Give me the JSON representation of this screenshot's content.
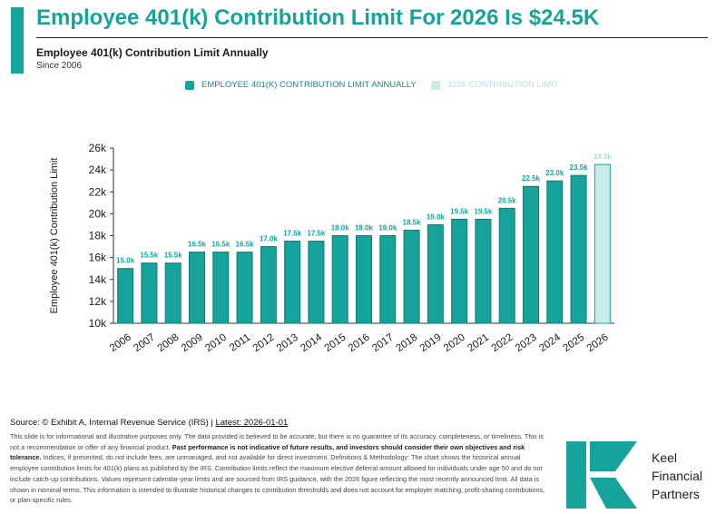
{
  "header": {
    "title": "Employee 401(k) Contribution Limit For 2026 Is $24.5K",
    "subtitle": "Employee 401(k) Contribution Limit Annually",
    "since": "Since 2006"
  },
  "legend": {
    "items": [
      {
        "label": "EMPLOYEE 401(K) CONTRIBUTION LIMIT ANNUALLY",
        "color": "#16a39c",
        "text_color": "#1a8a84"
      },
      {
        "label": "2026 CONTRIBUTION LIMIT",
        "color": "#c8ecea",
        "text_color": "#b6e3e0"
      }
    ]
  },
  "chart_data": {
    "type": "bar",
    "ylabel": "Employee 401(k) Contribution Limit",
    "ylim": [
      10,
      26
    ],
    "y_ticks": [
      10,
      12,
      14,
      16,
      18,
      20,
      22,
      24,
      26
    ],
    "y_tick_labels": [
      "10k",
      "12k",
      "14k",
      "16k",
      "18k",
      "20k",
      "22k",
      "24k",
      "26k"
    ],
    "categories": [
      "2006",
      "2007",
      "2008",
      "2009",
      "2010",
      "2011",
      "2012",
      "2013",
      "2014",
      "2015",
      "2016",
      "2017",
      "2018",
      "2019",
      "2020",
      "2021",
      "2022",
      "2023",
      "2024",
      "2025",
      "2026"
    ],
    "values": [
      15.0,
      15.5,
      15.5,
      16.5,
      16.5,
      16.5,
      17.0,
      17.5,
      17.5,
      18.0,
      18.0,
      18.0,
      18.5,
      19.0,
      19.5,
      19.5,
      20.5,
      22.5,
      23.0,
      23.5,
      24.5
    ],
    "data_labels": [
      "15.0k",
      "15.5k",
      "15.5k",
      "16.5k",
      "16.5k",
      "16.5k",
      "17.0k",
      "17.5k",
      "17.5k",
      "18.0k",
      "18.0k",
      "18.0k",
      "18.5k",
      "19.0k",
      "19.5k",
      "19.5k",
      "20.5k",
      "22.5k",
      "23.0k",
      "23.5k",
      "24.5k"
    ],
    "highlight_index": 20,
    "colors": {
      "main": "#16a39c",
      "main_border": "#0e7c76",
      "highlight": "#c8ecea",
      "highlight_border": "#16a39c",
      "label": "#16a39c",
      "highlight_label": "#a9dfdb"
    },
    "grid": false
  },
  "footer": {
    "source_prefix": "Source: © Exhibit A, Internal Revenue Service (IRS) | ",
    "latest": "Latest: 2026-01-01",
    "disclaimer_1": "This slide is for informational and illustrative purposes only. The data provided is believed to be accurate, but there is no guarantee of its accuracy, completeness, or timeliness. This is not a recommendation or offer of any financial product. ",
    "disclaimer_bold": "Past performance is not indicative of future results, and investors should consider their own objectives and risk tolerance.",
    "disclaimer_2": " Indices, if presented, do not include fees, are unmanaged, and not available for direct investment. Definitions & Methodology: The chart shows the historical annual employee contribution limits for 401(k) plans as published by the IRS. Contribution limits reflect the maximum elective deferral amount allowed for individuals under age 50 and do not include catch-up contributions. Values represent calendar-year limits and are sourced from IRS guidance, with the 2026 figure reflecting the most recently announced limit. All data is shown in nominal terms. This information is intended to illustrate historical changes to contribution thresholds and does not account for employer matching, profit-sharing contributions, or plan-specific rules."
  },
  "logo": {
    "line1": "Keel",
    "line2": "Financial",
    "line3": "Partners",
    "color": "#16a39c"
  }
}
